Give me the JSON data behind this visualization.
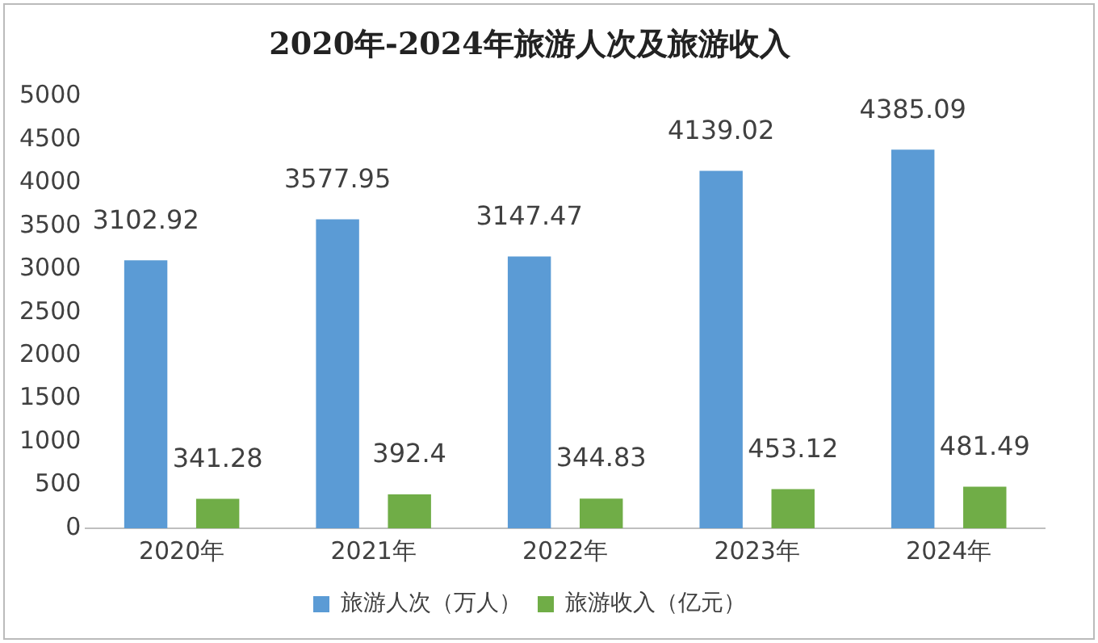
{
  "chart_data": {
    "type": "bar",
    "title": "2020年-2024年旅游人次及旅游收入",
    "categories": [
      "2020年",
      "2021年",
      "2022年",
      "2023年",
      "2024年"
    ],
    "series": [
      {
        "name": "旅游人次（万人）",
        "color": "#5b9bd5",
        "values": [
          3102.92,
          3577.95,
          3147.47,
          4139.02,
          4385.09
        ]
      },
      {
        "name": "旅游收入（亿元）",
        "color": "#70ad47",
        "values": [
          341.28,
          392.4,
          344.83,
          453.12,
          481.49
        ]
      }
    ],
    "ylim": [
      0,
      5000
    ],
    "yticks": [
      0,
      500,
      1000,
      1500,
      2000,
      2500,
      3000,
      3500,
      4000,
      4500,
      5000
    ],
    "grid": false,
    "legend": "bottom",
    "data_labels": true
  }
}
